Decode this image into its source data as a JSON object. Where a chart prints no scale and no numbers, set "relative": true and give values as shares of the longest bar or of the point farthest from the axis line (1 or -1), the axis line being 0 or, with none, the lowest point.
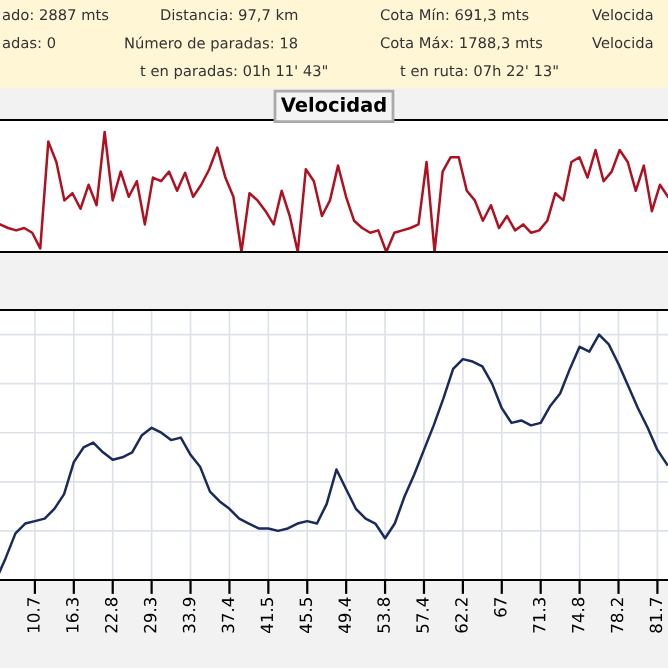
{
  "chart_data": [
    {
      "type": "other",
      "annotations": [
        "ado: 2887 mts",
        "Distancia: 97,7 km",
        "Cota Mín: 691,3 mts",
        "Velocida",
        "adas: 0",
        "Número de paradas: 18",
        "Cota Máx: 1788,3 mts",
        "Velocida",
        "t en paradas: 01h 11' 43\"",
        "t en ruta: 07h 22' 13\""
      ]
    },
    {
      "type": "line",
      "title": "Velocidad",
      "relative": true,
      "categories": [
        null,
        null,
        null,
        null,
        null,
        null,
        null,
        null,
        null,
        null,
        null,
        null,
        null,
        null,
        null,
        null,
        null,
        null,
        null,
        null,
        null,
        null,
        null,
        null,
        null,
        null,
        null,
        null,
        null,
        null,
        null,
        null,
        null,
        null,
        null,
        null,
        null,
        null,
        null,
        null,
        null,
        null,
        null,
        null,
        null,
        null,
        null,
        null,
        null,
        null,
        null,
        null,
        null,
        null,
        null,
        null,
        null,
        null,
        null,
        null,
        null,
        null,
        null,
        null,
        null,
        null,
        null,
        null,
        null,
        null,
        null,
        null,
        null,
        null,
        null,
        null,
        null,
        null,
        null,
        null,
        null,
        null,
        null,
        null
      ],
      "series": [
        {
          "color": "#b01020",
          "values": [
            0.23,
            0.2,
            0.18,
            0.2,
            0.16,
            0.03,
            0.92,
            0.75,
            0.43,
            0.49,
            0.36,
            0.56,
            0.39,
            1.0,
            0.43,
            0.67,
            0.46,
            0.59,
            0.23,
            0.62,
            0.59,
            0.67,
            0.51,
            0.66,
            0.46,
            0.56,
            0.69,
            0.87,
            0.62,
            0.46,
            0,
            0.49,
            0.43,
            0.34,
            0.23,
            0.51,
            0.3,
            0,
            0.69,
            0.59,
            0.3,
            0.43,
            0.72,
            0.46,
            0.26,
            0.2,
            0.16,
            0.18,
            0,
            0.16,
            0.18,
            0.2,
            0.23,
            0.75,
            0,
            0.67,
            0.79,
            0.79,
            0.51,
            0.43,
            0.26,
            0.39,
            0.2,
            0.3,
            0.18,
            0.23,
            0.16,
            0.18,
            0.26,
            0.49,
            0.43,
            0.75,
            0.79,
            0.62,
            0.85,
            0.59,
            0.67,
            0.85,
            0.75,
            0.51,
            0.72,
            0.34,
            0.56,
            0.46
          ]
        }
      ],
      "tick_labels": false,
      "grid": false
    },
    {
      "type": "line",
      "relative": true,
      "grid": true,
      "categories": [
        null,
        null,
        null,
        null,
        "10.7",
        null,
        null,
        null,
        "16.3",
        null,
        null,
        null,
        "22.8",
        null,
        null,
        null,
        "29.3",
        null,
        null,
        null,
        "33.9",
        null,
        null,
        null,
        "37.4",
        null,
        null,
        null,
        "41.5",
        null,
        null,
        null,
        "45.5",
        null,
        null,
        null,
        "49.4",
        null,
        null,
        null,
        "53.8",
        null,
        null,
        null,
        "57.4",
        null,
        null,
        null,
        "62.2",
        null,
        null,
        null,
        "67",
        null,
        null,
        null,
        "71.3",
        null,
        null,
        null,
        "74.8",
        null,
        null,
        null,
        "78.2",
        null,
        null,
        null,
        "81.7",
        null
      ],
      "series": [
        {
          "color": "#1a2a5a",
          "values": [
            0,
            0.09,
            0.19,
            0.23,
            0.24,
            0.25,
            0.29,
            0.35,
            0.48,
            0.54,
            0.56,
            0.52,
            0.49,
            0.5,
            0.52,
            0.59,
            0.62,
            0.6,
            0.57,
            0.58,
            0.51,
            0.46,
            0.36,
            0.32,
            0.29,
            0.25,
            0.23,
            0.21,
            0.21,
            0.2,
            0.21,
            0.23,
            0.24,
            0.23,
            0.31,
            0.45,
            0.37,
            0.29,
            0.25,
            0.23,
            0.17,
            0.23,
            0.34,
            0.43,
            0.53,
            0.63,
            0.74,
            0.86,
            0.9,
            0.89,
            0.87,
            0.8,
            0.7,
            0.64,
            0.65,
            0.63,
            0.64,
            0.71,
            0.76,
            0.86,
            0.95,
            0.93,
            1.0,
            0.96,
            0.88,
            0.79,
            0.7,
            0.62,
            0.53,
            0.47
          ]
        }
      ],
      "tick_labels": "x"
    }
  ]
}
